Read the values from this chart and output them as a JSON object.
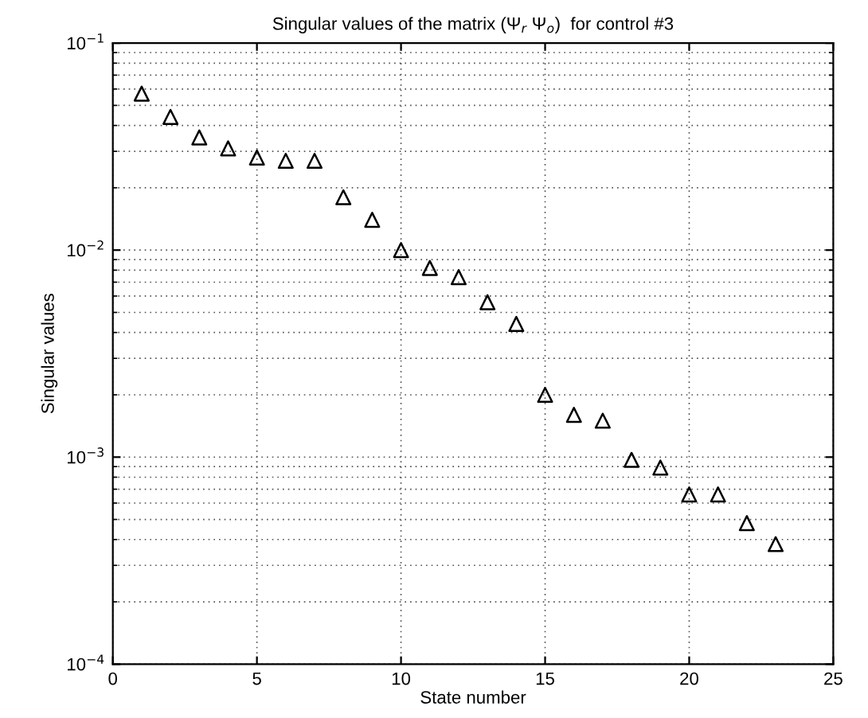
{
  "chart_data": {
    "type": "scatter",
    "title": "Singular values of the matrix (Ψ$_{r}$ Ψ$_{o}$)  for control #3",
    "xlabel": "State number",
    "ylabel": "Singular values",
    "x": [
      1,
      2,
      3,
      4,
      5,
      6,
      7,
      8,
      9,
      10,
      11,
      12,
      13,
      14,
      15,
      16,
      17,
      18,
      19,
      20,
      21,
      22,
      23
    ],
    "series": [
      {
        "color": "#000000",
        "values": [
          0.057,
          0.044,
          0.035,
          0.031,
          0.028,
          0.027,
          0.027,
          0.018,
          0.014,
          0.01,
          0.0082,
          0.0074,
          0.0056,
          0.0044,
          0.002,
          0.0016,
          0.0015,
          0.00097,
          0.00089,
          0.00066,
          0.00066,
          0.00048,
          0.00038
        ]
      }
    ],
    "log": "y",
    "marker": "triangle",
    "grid": true,
    "xlim": [
      0,
      25
    ],
    "xticks": [
      0,
      5,
      10,
      15,
      20,
      25
    ],
    "ylim": [
      0.0001,
      0.1
    ],
    "yticks": [
      {
        "value": 0.0001,
        "label": "10$^{−4}$"
      },
      {
        "value": 0.001,
        "label": "10$^{−3}$"
      },
      {
        "value": 0.01,
        "label": "10$^{−2}$"
      },
      {
        "value": 0.1,
        "label": "10$^{−1}$"
      }
    ]
  }
}
